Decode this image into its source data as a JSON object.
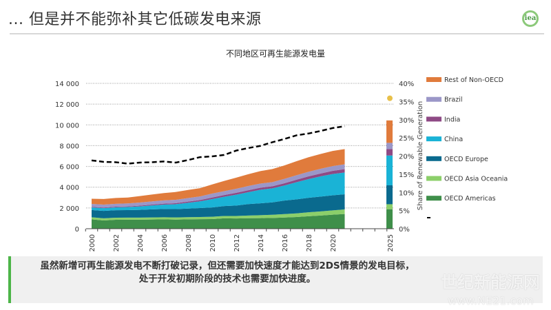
{
  "header": {
    "title": "... 但是并不能弥补其它低碳发电来源",
    "logo": "iea"
  },
  "note": {
    "line1": "虽然新增可再生能源发电不断打破记录，但还需要加快速度才能达到2DS情景的发电目标，",
    "line2": "处于开发初期阶段的技术也需要加快进度。"
  },
  "watermark": {
    "line1": "世纪新能源网",
    "line2": "www.NE21.com"
  },
  "chart_data": {
    "type": "area",
    "title": "不同地区可再生能源发电量",
    "xlabel": "",
    "ylabel": "",
    "y2label": "Share of  Renewable Generation",
    "ylim": [
      0,
      14000
    ],
    "y2lim": [
      0,
      40
    ],
    "yticks": [
      "0",
      "2 000",
      "4 000",
      "6 000",
      "8 000",
      "10 000",
      "12 000",
      "14 000"
    ],
    "y2ticks": [
      "0%",
      "5%",
      "10%",
      "15%",
      "20%",
      "25%",
      "30%",
      "35%",
      "40%"
    ],
    "xticks": [
      "2000",
      "2002",
      "2004",
      "2006",
      "2008",
      "2010",
      "2012",
      "2014",
      "2016",
      "2018",
      "2020",
      "2025"
    ],
    "grid": true,
    "legend_position": "right",
    "x": [
      2000,
      2001,
      2002,
      2003,
      2004,
      2005,
      2006,
      2007,
      2008,
      2009,
      2010,
      2011,
      2012,
      2013,
      2014,
      2015,
      2016,
      2017,
      2018,
      2019,
      2020,
      2021
    ],
    "series": [
      {
        "name": "OECD Americas",
        "color": "#3f8f4a",
        "values": [
          900,
          800,
          860,
          870,
          870,
          890,
          900,
          880,
          900,
          920,
          930,
          1000,
          990,
          1010,
          1020,
          1040,
          1080,
          1130,
          1200,
          1270,
          1350,
          1420
        ],
        "target_2025": 1880
      },
      {
        "name": "OECD Asia Oceania",
        "color": "#8ccf6a",
        "values": [
          200,
          200,
          200,
          200,
          200,
          200,
          200,
          210,
          210,
          210,
          220,
          230,
          240,
          260,
          280,
          300,
          330,
          350,
          380,
          400,
          420,
          440
        ],
        "target_2025": 480
      },
      {
        "name": "OECD Europe",
        "color": "#0a6a8e",
        "values": [
          700,
          720,
          720,
          720,
          750,
          780,
          800,
          800,
          830,
          860,
          900,
          950,
          1000,
          1100,
          1150,
          1200,
          1300,
          1350,
          1400,
          1420,
          1450,
          1460
        ],
        "target_2025": 1820
      },
      {
        "name": "China",
        "color": "#1ab3d6",
        "values": [
          250,
          260,
          280,
          300,
          330,
          370,
          420,
          470,
          560,
          650,
          800,
          900,
          1050,
          1150,
          1300,
          1350,
          1450,
          1650,
          1800,
          1950,
          2050,
          2100
        ],
        "target_2025": 2870
      },
      {
        "name": "India",
        "color": "#8e4a85",
        "values": [
          60,
          60,
          60,
          60,
          70,
          80,
          90,
          100,
          110,
          120,
          150,
          160,
          180,
          190,
          200,
          200,
          220,
          240,
          260,
          280,
          300,
          320
        ],
        "target_2025": 620
      },
      {
        "name": "Brazil",
        "color": "#9b97c8",
        "values": [
          280,
          280,
          280,
          290,
          300,
          310,
          320,
          330,
          340,
          350,
          380,
          380,
          390,
          400,
          400,
          400,
          420,
          430,
          440,
          450,
          460,
          460
        ],
        "target_2025": 600
      },
      {
        "name": "Rest of Non-OECD",
        "color": "#e07b3c",
        "values": [
          500,
          540,
          560,
          560,
          620,
          660,
          700,
          750,
          780,
          800,
          880,
          980,
          1070,
          1140,
          1200,
          1260,
          1300,
          1350,
          1400,
          1430,
          1460,
          1470
        ],
        "target_2025": 2160
      }
    ],
    "share_line": {
      "name": "",
      "color": "#000000",
      "style": "dashed",
      "axis": "right",
      "values": [
        18.8,
        18.4,
        18.3,
        17.9,
        18.2,
        18.3,
        18.5,
        18.2,
        18.9,
        19.7,
        19.9,
        20.3,
        21.5,
        22.2,
        22.8,
        23.8,
        24.7,
        25.7,
        26.2,
        26.9,
        27.7,
        28.2
      ]
    },
    "share_2025_target": {
      "value": 35.9,
      "color": "#e8c04a"
    }
  }
}
